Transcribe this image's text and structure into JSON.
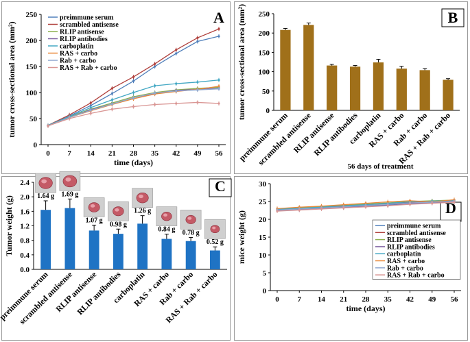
{
  "chart_data": [
    {
      "panel": "A",
      "type": "line",
      "ylabel": "tumor cross-sectional area (mm²)",
      "xlabel": "time (days)",
      "x": [
        0,
        7,
        14,
        21,
        28,
        35,
        42,
        49,
        56
      ],
      "xticks": [
        "0",
        "7",
        "14",
        "21",
        "28",
        "35",
        "42",
        "49",
        "56"
      ],
      "yticks": [
        "0",
        "50",
        "100",
        "150",
        "200",
        "250"
      ],
      "ylim": [
        0,
        250
      ],
      "series": [
        {
          "name": "preimmune serum",
          "color": "#4f7fba",
          "values": [
            36,
            55,
            75,
            98,
            122,
            150,
            175,
            198,
            208
          ]
        },
        {
          "name": "scrambled antisense",
          "color": "#b0403c",
          "values": [
            37,
            57,
            80,
            108,
            130,
            155,
            182,
            205,
            222
          ]
        },
        {
          "name": "RLIP antisense",
          "color": "#8db04f",
          "values": [
            36,
            53,
            68,
            80,
            92,
            100,
            105,
            108,
            110
          ]
        },
        {
          "name": "RLIP antibodies",
          "color": "#7d5fa0",
          "values": [
            36,
            52,
            67,
            78,
            90,
            98,
            104,
            106,
            108
          ]
        },
        {
          "name": "carboplatin",
          "color": "#42a7c3",
          "values": [
            37,
            54,
            71,
            86,
            100,
            113,
            117,
            120,
            124
          ]
        },
        {
          "name": "RAS + carbo",
          "color": "#e8893a",
          "values": [
            36,
            52,
            65,
            77,
            88,
            97,
            102,
            106,
            112
          ]
        },
        {
          "name": "Rab + carbo",
          "color": "#90a9d0",
          "values": [
            36,
            52,
            66,
            78,
            90,
            99,
            103,
            105,
            107
          ]
        },
        {
          "name": "RAS + Rab + carbo",
          "color": "#d99694",
          "values": [
            36,
            50,
            60,
            68,
            73,
            77,
            79,
            81,
            79
          ]
        }
      ]
    },
    {
      "panel": "B",
      "type": "bar",
      "ylabel": "tumor cross-sectional area (mm²)",
      "xlabel": "56 days of treatment",
      "categories": [
        "preimmune serum",
        "scrambled antisense",
        "RLIP antisense",
        "RLIP antibodies",
        "carboplatin",
        "RAS + carbo",
        "Rab + carbo",
        "RAS + Rab + carbo"
      ],
      "values": [
        208,
        221,
        116,
        113,
        124,
        108,
        104,
        79
      ],
      "errors": [
        4,
        5,
        3,
        3,
        8,
        6,
        4,
        3
      ],
      "yticks": [
        "0",
        "50",
        "100",
        "150",
        "200",
        "250"
      ],
      "ylim": [
        0,
        250
      ],
      "color": "#a0701a"
    },
    {
      "panel": "C",
      "type": "bar",
      "ylabel": "Tumor weight (g)",
      "categories": [
        "preimmune serum",
        "scrambled antisense",
        "RLIP antisense",
        "RLIP antibodies",
        "carboplatin",
        "RAS + carbo",
        "Rab + carbo",
        "RAS + Rab + carbo"
      ],
      "values": [
        1.64,
        1.69,
        1.07,
        0.98,
        1.26,
        0.84,
        0.78,
        0.52
      ],
      "errors": [
        0.25,
        0.25,
        0.15,
        0.13,
        0.22,
        0.13,
        0.1,
        0.1
      ],
      "value_labels": [
        "1.64 g",
        "1.69 g",
        "1.07 g",
        "0.98 g",
        "1.26 g",
        "0.84 g",
        "0.78 g",
        "0.52 g"
      ],
      "yticks": [
        "0.0",
        "0.4",
        "0.8",
        "1.2",
        "1.6",
        "2.0",
        "2.4"
      ],
      "ylim": [
        0,
        2.4
      ],
      "color": "#1f73c4"
    },
    {
      "panel": "D",
      "type": "line",
      "ylabel": "mice weight (g)",
      "xlabel": "time (days)",
      "x": [
        0,
        7,
        14,
        21,
        28,
        35,
        42,
        49,
        56
      ],
      "xticks": [
        "0",
        "7",
        "14",
        "21",
        "28",
        "35",
        "42",
        "49",
        "56"
      ],
      "yticks": [
        "0",
        "5",
        "10",
        "15",
        "20",
        "25",
        "30"
      ],
      "ylim": [
        0,
        30
      ],
      "series": [
        {
          "name": "preimmune serum",
          "color": "#4f7fba",
          "values": [
            22.5,
            22.8,
            23.1,
            23.4,
            23.8,
            24.1,
            24.5,
            24.8,
            25.1
          ]
        },
        {
          "name": "scrambled antisense",
          "color": "#b0403c",
          "values": [
            22.7,
            23.0,
            23.3,
            23.7,
            24.0,
            24.4,
            24.8,
            25.0,
            25.3
          ]
        },
        {
          "name": "RLIP antisense",
          "color": "#8db04f",
          "values": [
            22.9,
            23.2,
            23.6,
            23.9,
            24.3,
            24.6,
            25.0,
            25.2,
            25.4
          ]
        },
        {
          "name": "RLIP antibodies",
          "color": "#7d5fa0",
          "values": [
            22.4,
            22.7,
            23.0,
            23.3,
            23.6,
            23.9,
            24.3,
            24.6,
            24.9
          ]
        },
        {
          "name": "carboplatin",
          "color": "#42a7c3",
          "values": [
            22.8,
            23.1,
            23.4,
            23.8,
            24.1,
            24.5,
            24.9,
            25.1,
            25.3
          ]
        },
        {
          "name": "RAS + carbo",
          "color": "#e8893a",
          "values": [
            23.0,
            23.4,
            23.7,
            24.1,
            24.5,
            24.9,
            25.2,
            24.9,
            25.5
          ]
        },
        {
          "name": "Rab + carbo",
          "color": "#90a9d0",
          "values": [
            22.6,
            22.9,
            23.2,
            23.5,
            23.9,
            24.2,
            24.6,
            24.8,
            25.1
          ]
        },
        {
          "name": "RAS + Rab + carbo",
          "color": "#d99694",
          "values": [
            22.3,
            22.6,
            22.9,
            23.2,
            23.5,
            23.8,
            24.2,
            24.5,
            24.8
          ]
        }
      ]
    }
  ]
}
